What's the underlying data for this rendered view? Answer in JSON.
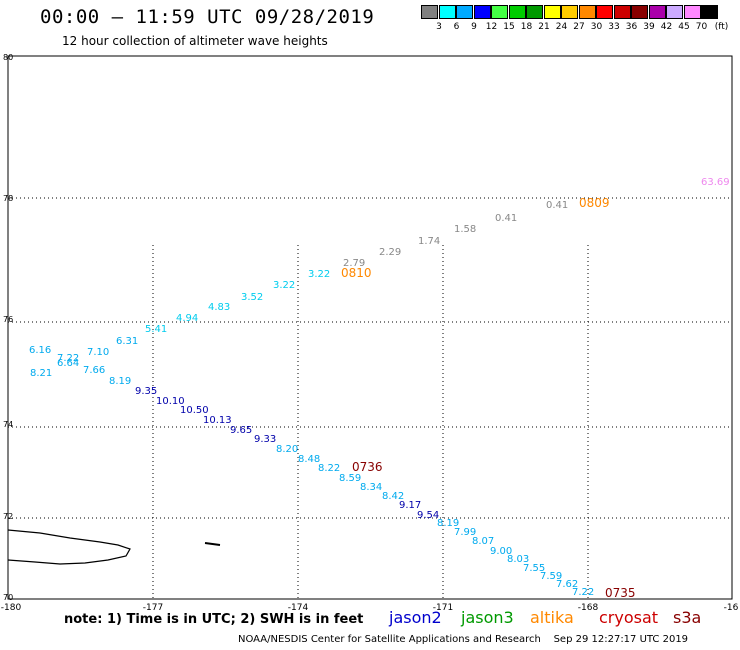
{
  "header": {
    "title": "00:00 – 11:59 UTC 09/28/2019",
    "subtitle": "12 hour collection of altimeter wave heights"
  },
  "legend": {
    "unit": "(ft)",
    "items": [
      {
        "label": "3",
        "color": "#808080"
      },
      {
        "label": "6",
        "color": "#00ffff"
      },
      {
        "label": "9",
        "color": "#00aaff"
      },
      {
        "label": "12",
        "color": "#0000ff"
      },
      {
        "label": "15",
        "color": "#44ff44"
      },
      {
        "label": "18",
        "color": "#00cc00"
      },
      {
        "label": "21",
        "color": "#009900"
      },
      {
        "label": "24",
        "color": "#ffff00"
      },
      {
        "label": "27",
        "color": "#ffcc00"
      },
      {
        "label": "30",
        "color": "#ff8800"
      },
      {
        "label": "33",
        "color": "#ff0000"
      },
      {
        "label": "36",
        "color": "#cc0000"
      },
      {
        "label": "39",
        "color": "#880000"
      },
      {
        "label": "42",
        "color": "#aa00aa"
      },
      {
        "label": "45",
        "color": "#ccaaff"
      },
      {
        "label": "70",
        "color": "#ff88ff"
      },
      {
        "label": "",
        "color": "#000000"
      }
    ]
  },
  "axes": {
    "lat_labels": [
      "80",
      "78",
      "76",
      "74",
      "72",
      "70"
    ],
    "lon_labels": [
      "-180",
      "-177",
      "-174",
      "-171",
      "-168",
      "-16"
    ]
  },
  "tracks": [
    {
      "satellite": "altika",
      "color": "#888888",
      "points": [
        "0.41",
        "0.41",
        "1.58",
        "1.74",
        "2.29",
        "2.79"
      ]
    },
    {
      "satellite": "altika",
      "color": "#00ccee",
      "points": [
        "3.22",
        "3.22",
        "3.52",
        "4.83",
        "4.94",
        "5.41",
        "6.31",
        "6.16",
        "7.10",
        "7.22",
        "6.64",
        "7.66",
        "8.21",
        "8.19"
      ]
    },
    {
      "satellite": "jason2",
      "color": "#0000aa",
      "points": [
        "9.35",
        "10.10",
        "10.50",
        "10.13",
        "9.65",
        "9.33"
      ]
    },
    {
      "satellite": "jason2",
      "color": "#00aaee",
      "points": [
        "8.20",
        "8.48",
        "8.22",
        "8.59",
        "8.34",
        "8.42"
      ]
    },
    {
      "satellite": "jason2",
      "color": "#0000aa",
      "points": [
        "9.17",
        "9.54"
      ]
    },
    {
      "satellite": "jason2",
      "color": "#00aaee",
      "points": [
        "8.19",
        "7.99",
        "8.07",
        "9.00",
        "8.03",
        "7.55",
        "7.59",
        "7.62",
        "7.22"
      ]
    },
    {
      "satellite": "other",
      "color": "#ee88ee",
      "points": [
        "63.69"
      ]
    }
  ],
  "time_labels": [
    {
      "text": "0809",
      "color": "#ff8800"
    },
    {
      "text": "0810",
      "color": "#ff8800"
    },
    {
      "text": "0736",
      "color": "#880000"
    },
    {
      "text": "0735",
      "color": "#880000"
    }
  ],
  "note": "note:  1) Time is in UTC;  2) SWH is in feet",
  "satellites": [
    {
      "name": "jason2",
      "color": "#0000cc"
    },
    {
      "name": "jason3",
      "color": "#009900"
    },
    {
      "name": "altika",
      "color": "#ff8800"
    },
    {
      "name": "cryosat",
      "color": "#cc0000"
    },
    {
      "name": "s3a",
      "color": "#880000"
    }
  ],
  "footer": "NOAA/NESDIS Center for Satellite Applications and Research    Sep 29 12:27:17 UTC 2019"
}
